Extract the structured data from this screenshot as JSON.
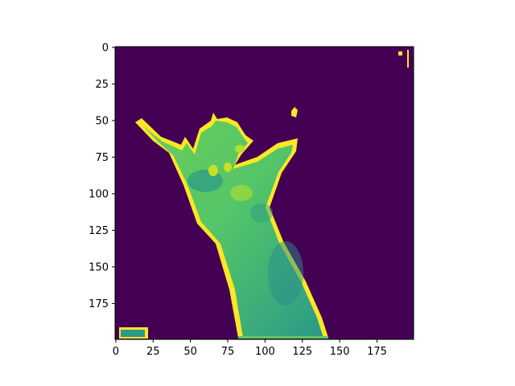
{
  "chart_data": {
    "type": "heatmap",
    "description_text": "",
    "colormap": "viridis",
    "colors": {
      "background": "#440154",
      "low": "#21918c",
      "mid": "#5ec962",
      "high": "#fde725"
    },
    "image_size": [
      200,
      200
    ],
    "xlim": [
      0,
      199
    ],
    "ylim": [
      199,
      0
    ],
    "xticks": [
      0,
      25,
      50,
      75,
      100,
      125,
      150,
      175
    ],
    "yticks": [
      0,
      25,
      50,
      75,
      100,
      125,
      150,
      175
    ],
    "xtick_labels": [
      "0",
      "25",
      "50",
      "75",
      "100",
      "125",
      "150",
      "175"
    ],
    "ytick_labels": [
      "0",
      "25",
      "50",
      "75",
      "100",
      "125",
      "150",
      "175"
    ],
    "title": "",
    "xlabel": "",
    "ylabel": "",
    "grid": false,
    "colorbar": false
  }
}
